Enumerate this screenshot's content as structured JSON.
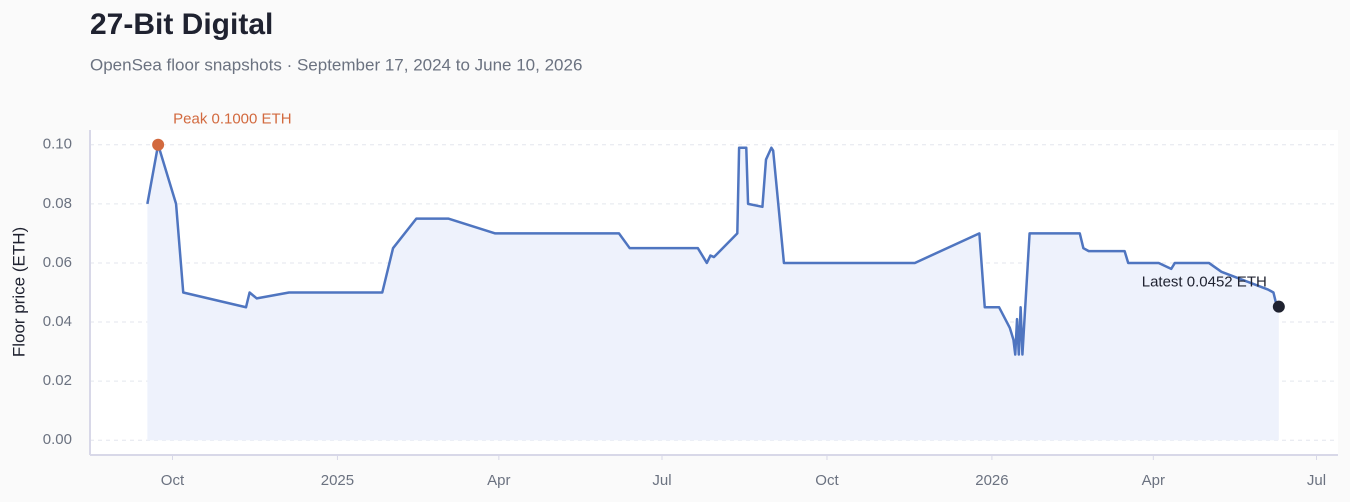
{
  "chart_data": {
    "type": "line",
    "title": "27-Bit Digital",
    "subtitle": "OpenSea floor snapshots · September 17, 2024 to June 10, 2026",
    "y_label": "Floor price (ETH)",
    "peak_label": "Peak 0.1000 ETH",
    "latest_label": "Latest 0.0452 ETH",
    "peak_color": "#d2693e",
    "latest_color": "#1f2230",
    "area_color": "#eef2fc",
    "grid": true,
    "x": [
      "2024-09-17",
      "2024-09-23",
      "2024-10-03",
      "2024-10-07",
      "2024-11-11",
      "2024-11-13",
      "2024-11-17",
      "2024-12-05",
      "2025-01-26",
      "2025-02-01",
      "2025-02-14",
      "2025-03-04",
      "2025-03-30",
      "2025-06-07",
      "2025-06-13",
      "2025-07-21",
      "2025-07-26",
      "2025-07-28",
      "2025-07-30",
      "2025-08-12",
      "2025-08-13",
      "2025-08-17",
      "2025-08-18",
      "2025-08-26",
      "2025-08-28",
      "2025-08-31",
      "2025-09-01",
      "2025-09-07",
      "2025-11-19",
      "2025-12-25",
      "2025-12-28",
      "2026-01-05",
      "2026-01-11",
      "2026-01-13",
      "2026-01-14",
      "2026-01-15",
      "2026-01-16",
      "2026-01-17",
      "2026-01-18",
      "2026-01-22",
      "2026-02-07",
      "2026-02-19",
      "2026-02-21",
      "2026-02-24",
      "2026-03-16",
      "2026-03-18",
      "2026-04-04",
      "2026-04-11",
      "2026-04-13",
      "2026-05-02",
      "2026-05-09",
      "2026-06-04",
      "2026-06-07",
      "2026-06-09",
      "2026-06-10"
    ],
    "series": [
      {
        "name": "Floor price",
        "color": "#4f75c0",
        "values": [
          0.08,
          0.1,
          0.08,
          0.05,
          0.045,
          0.05,
          0.048,
          0.05,
          0.05,
          0.065,
          0.075,
          0.075,
          0.07,
          0.07,
          0.065,
          0.065,
          0.06,
          0.0625,
          0.062,
          0.07,
          0.099,
          0.099,
          0.08,
          0.079,
          0.095,
          0.099,
          0.098,
          0.06,
          0.06,
          0.07,
          0.045,
          0.045,
          0.038,
          0.034,
          0.029,
          0.041,
          0.029,
          0.045,
          0.029,
          0.07,
          0.07,
          0.07,
          0.065,
          0.064,
          0.064,
          0.06,
          0.06,
          0.058,
          0.06,
          0.06,
          0.057,
          0.051,
          0.05,
          0.045,
          0.0452
        ]
      }
    ],
    "xlim": [
      "2024-08-16",
      "2026-07-13"
    ],
    "xticks": [
      {
        "value": "2024-10-01",
        "label": "Oct"
      },
      {
        "value": "2025-01-01",
        "label": "2025"
      },
      {
        "value": "2025-04-01",
        "label": "Apr"
      },
      {
        "value": "2025-07-01",
        "label": "Jul"
      },
      {
        "value": "2025-10-01",
        "label": "Oct"
      },
      {
        "value": "2026-01-01",
        "label": "2026"
      },
      {
        "value": "2026-04-01",
        "label": "Apr"
      },
      {
        "value": "2026-07-01",
        "label": "Jul"
      }
    ],
    "ylim": [
      -0.005,
      0.105
    ],
    "yticks": [
      {
        "value": 0,
        "label": "0.00"
      },
      0.02,
      0.04,
      0.06,
      0.08,
      {
        "value": 0.1,
        "label": "0.10"
      }
    ]
  }
}
